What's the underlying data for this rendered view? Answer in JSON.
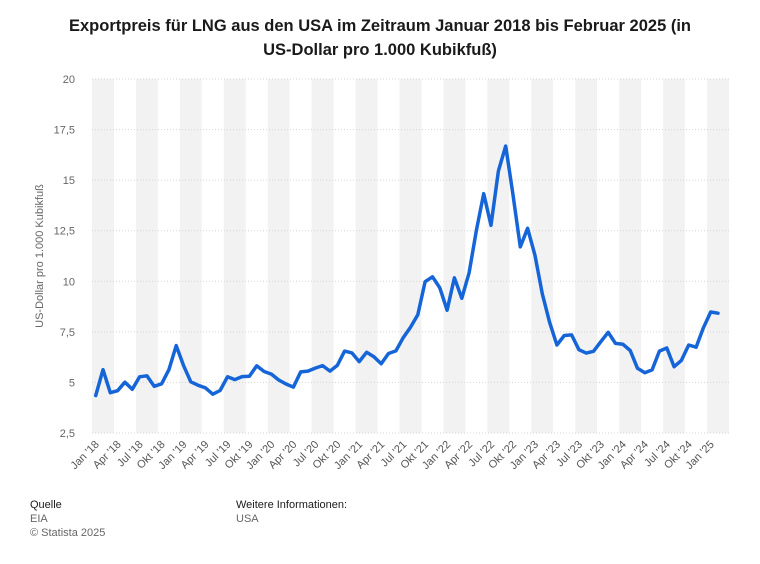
{
  "chart_data": {
    "type": "line",
    "title": "Exportpreis für LNG aus den USA im Zeitraum Januar 2018 bis Februar 2025 (in US-Dollar pro 1.000 Kubikfuß)",
    "title_lines": [
      "Exportpreis für LNG aus den USA im Zeitraum Januar 2018 bis Februar 2025 (in",
      "US-Dollar pro 1.000 Kubikfuß)"
    ],
    "ylabel": "US-Dollar pro 1.000 Kubikfuß",
    "xlabel": "",
    "ylim": [
      2.5,
      20
    ],
    "y_ticks": [
      {
        "value": 2.5,
        "label": "2,5"
      },
      {
        "value": 5,
        "label": "5"
      },
      {
        "value": 7.5,
        "label": "7,5"
      },
      {
        "value": 10,
        "label": "10"
      },
      {
        "value": 12.5,
        "label": "12,5"
      },
      {
        "value": 15,
        "label": "15"
      },
      {
        "value": 17.5,
        "label": "17,5"
      },
      {
        "value": 20,
        "label": "20"
      }
    ],
    "x_tick_labels": [
      "Jan '18",
      "Apr '18",
      "Jul '18",
      "Okt '18",
      "Jan '19",
      "Apr '19",
      "Jul '19",
      "Okt '19",
      "Jan '20",
      "Apr '20",
      "Jul '20",
      "Okt '20",
      "Jan '21",
      "Apr '21",
      "Jul '21",
      "Okt '21",
      "Jan '22",
      "Apr '22",
      "Jul '22",
      "Okt '22",
      "Jan '23",
      "Apr '23",
      "Jul '23",
      "Okt '23",
      "Jan '24",
      "Apr '24",
      "Jul '24",
      "Okt '24",
      "Jan '25"
    ],
    "grid": true,
    "series_color": "#1565d8",
    "months_start": "2018-01",
    "values": [
      4.35,
      5.63,
      4.49,
      4.59,
      5.01,
      4.66,
      5.28,
      5.33,
      4.81,
      4.93,
      5.63,
      6.82,
      5.84,
      5.03,
      4.86,
      4.73,
      4.42,
      4.6,
      5.28,
      5.14,
      5.29,
      5.31,
      5.82,
      5.54,
      5.41,
      5.12,
      4.92,
      4.77,
      5.52,
      5.56,
      5.71,
      5.83,
      5.56,
      5.84,
      6.55,
      6.46,
      6.03,
      6.49,
      6.27,
      5.92,
      6.43,
      6.56,
      7.21,
      7.73,
      8.35,
      9.98,
      10.22,
      9.68,
      8.57,
      10.17,
      9.16,
      10.42,
      12.52,
      14.33,
      12.77,
      15.45,
      16.69,
      14.27,
      11.7,
      12.62,
      11.28,
      9.38,
      7.97,
      6.85,
      7.32,
      7.35,
      6.62,
      6.45,
      6.54,
      7.02,
      7.48,
      6.93,
      6.89,
      6.58,
      5.7,
      5.48,
      5.62,
      6.55,
      6.7,
      5.78,
      6.09,
      6.85,
      6.74,
      7.7,
      8.48,
      8.42
    ]
  },
  "footer": {
    "source_heading": "Quelle",
    "source_name": "EIA",
    "copyright": "© Statista 2025",
    "info_heading": "Weitere Informationen:",
    "info_region": "USA"
  }
}
